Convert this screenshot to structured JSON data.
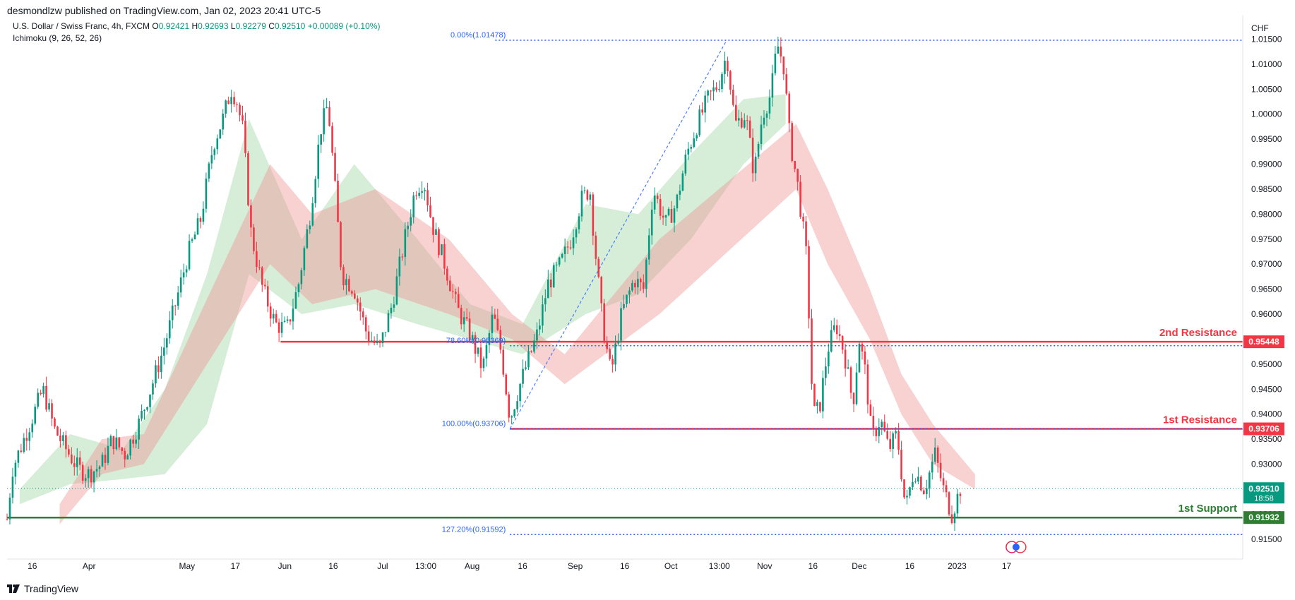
{
  "header": {
    "published": "desmondlzw published on TradingView.com, Jan 02, 2023 20:41 UTC-5"
  },
  "legend": {
    "symbol": "U.S. Dollar / Swiss Franc, 4h, FXCM",
    "o_label": "O",
    "o": "0.92421",
    "h_label": "H",
    "h": "0.92693",
    "l_label": "L",
    "l": "0.92279",
    "c_label": "C",
    "c": "0.92510",
    "change": "+0.00089 (+0.10%)",
    "indicator": "Ichimoku (9, 26, 52, 26)"
  },
  "footer": {
    "logo_text": "TradingView"
  },
  "colors": {
    "up": "#089981",
    "down": "#f23645",
    "cloud_up": "#a5d6a7",
    "cloud_down": "#ef9a9a",
    "resistance": "#f23645",
    "support": "#2e7d32",
    "fib": "#2962ff"
  },
  "chart_data": {
    "type": "line",
    "title": "U.S. Dollar / Swiss Franc, 4h, FXCM",
    "currency": "CHF",
    "ylim": [
      0.9113,
      1.0186
    ],
    "y_ticks": [
      "1.01500",
      "1.01000",
      "1.00500",
      "1.00000",
      "0.99500",
      "0.99000",
      "0.98500",
      "0.98000",
      "0.97500",
      "0.97000",
      "0.96500",
      "0.96000",
      "0.95500",
      "0.95000",
      "0.94500",
      "0.94000",
      "0.93500",
      "0.93000",
      "0.92500",
      "0.92000",
      "0.91500"
    ],
    "x_ticks": [
      {
        "label": "16",
        "x": 0.024
      },
      {
        "label": "Apr",
        "x": 0.078
      },
      {
        "label": "May",
        "x": 0.171
      },
      {
        "label": "17",
        "x": 0.217
      },
      {
        "label": "Jun",
        "x": 0.264
      },
      {
        "label": "16",
        "x": 0.31
      },
      {
        "label": "Jul",
        "x": 0.357
      },
      {
        "label": "13:00",
        "x": 0.398
      },
      {
        "label": "Aug",
        "x": 0.442
      },
      {
        "label": "16",
        "x": 0.49
      },
      {
        "label": "Sep",
        "x": 0.54
      },
      {
        "label": "16",
        "x": 0.587
      },
      {
        "label": "Oct",
        "x": 0.631
      },
      {
        "label": "13:00",
        "x": 0.677
      },
      {
        "label": "Nov",
        "x": 0.72
      },
      {
        "label": "16",
        "x": 0.766
      },
      {
        "label": "Dec",
        "x": 0.81
      },
      {
        "label": "16",
        "x": 0.858
      },
      {
        "label": "2023",
        "x": 0.903
      },
      {
        "label": "17",
        "x": 0.95
      }
    ],
    "price_path": [
      [
        0.0,
        0.919
      ],
      [
        0.005,
        0.929
      ],
      [
        0.016,
        0.935
      ],
      [
        0.027,
        0.941
      ],
      [
        0.034,
        0.945
      ],
      [
        0.045,
        0.937
      ],
      [
        0.056,
        0.933
      ],
      [
        0.068,
        0.929
      ],
      [
        0.078,
        0.928
      ],
      [
        0.09,
        0.93
      ],
      [
        0.1,
        0.935
      ],
      [
        0.112,
        0.932
      ],
      [
        0.125,
        0.938
      ],
      [
        0.138,
        0.946
      ],
      [
        0.15,
        0.954
      ],
      [
        0.16,
        0.962
      ],
      [
        0.172,
        0.972
      ],
      [
        0.184,
        0.979
      ],
      [
        0.196,
        0.994
      ],
      [
        0.205,
        0.999
      ],
      [
        0.213,
        1.005
      ],
      [
        0.218,
        1.003
      ],
      [
        0.224,
        0.997
      ],
      [
        0.232,
        0.976
      ],
      [
        0.243,
        0.965
      ],
      [
        0.255,
        0.958
      ],
      [
        0.266,
        0.957
      ],
      [
        0.277,
        0.966
      ],
      [
        0.288,
        0.98
      ],
      [
        0.298,
        0.997
      ],
      [
        0.305,
        1.002
      ],
      [
        0.311,
        0.987
      ],
      [
        0.318,
        0.968
      ],
      [
        0.33,
        0.965
      ],
      [
        0.342,
        0.956
      ],
      [
        0.354,
        0.953
      ],
      [
        0.366,
        0.962
      ],
      [
        0.378,
        0.975
      ],
      [
        0.388,
        0.985
      ],
      [
        0.396,
        0.987
      ],
      [
        0.404,
        0.978
      ],
      [
        0.416,
        0.97
      ],
      [
        0.428,
        0.961
      ],
      [
        0.44,
        0.956
      ],
      [
        0.452,
        0.949
      ],
      [
        0.462,
        0.96
      ],
      [
        0.47,
        0.952
      ],
      [
        0.478,
        0.939
      ],
      [
        0.486,
        0.945
      ],
      [
        0.494,
        0.95
      ],
      [
        0.504,
        0.956
      ],
      [
        0.514,
        0.966
      ],
      [
        0.526,
        0.97
      ],
      [
        0.536,
        0.975
      ],
      [
        0.546,
        0.983
      ],
      [
        0.554,
        0.985
      ],
      [
        0.558,
        0.975
      ],
      [
        0.566,
        0.958
      ],
      [
        0.574,
        0.948
      ],
      [
        0.584,
        0.96
      ],
      [
        0.596,
        0.967
      ],
      [
        0.605,
        0.965
      ],
      [
        0.614,
        0.985
      ],
      [
        0.626,
        0.978
      ],
      [
        0.636,
        0.982
      ],
      [
        0.646,
        0.992
      ],
      [
        0.656,
        0.998
      ],
      [
        0.666,
        1.003
      ],
      [
        0.676,
        1.006
      ],
      [
        0.684,
        1.012
      ],
      [
        0.692,
        0.998
      ],
      [
        0.702,
        1.0
      ],
      [
        0.71,
        0.988
      ],
      [
        0.718,
        1.0
      ],
      [
        0.726,
        1.004
      ],
      [
        0.732,
        1.014
      ],
      [
        0.738,
        1.01
      ],
      [
        0.744,
        0.995
      ],
      [
        0.752,
        0.985
      ],
      [
        0.76,
        0.971
      ],
      [
        0.766,
        0.94
      ],
      [
        0.772,
        0.941
      ],
      [
        0.78,
        0.953
      ],
      [
        0.788,
        0.958
      ],
      [
        0.796,
        0.952
      ],
      [
        0.804,
        0.942
      ],
      [
        0.81,
        0.955
      ],
      [
        0.816,
        0.948
      ],
      [
        0.822,
        0.935
      ],
      [
        0.83,
        0.939
      ],
      [
        0.838,
        0.933
      ],
      [
        0.846,
        0.936
      ],
      [
        0.854,
        0.921
      ],
      [
        0.862,
        0.929
      ],
      [
        0.872,
        0.925
      ],
      [
        0.882,
        0.932
      ],
      [
        0.89,
        0.925
      ],
      [
        0.898,
        0.92
      ],
      [
        0.906,
        0.9251
      ]
    ],
    "cloud_up_band": [
      [
        0.012,
        0.922,
        0.925
      ],
      [
        0.06,
        0.926,
        0.936
      ],
      [
        0.11,
        0.927,
        0.933
      ],
      [
        0.15,
        0.928,
        0.945
      ],
      [
        0.19,
        0.938,
        0.968
      ],
      [
        0.23,
        0.968,
        0.999
      ],
      [
        0.28,
        0.96,
        0.975
      ],
      [
        0.33,
        0.962,
        0.99
      ],
      [
        0.39,
        0.958,
        0.975
      ],
      [
        0.44,
        0.955,
        0.962
      ],
      [
        0.49,
        0.952,
        0.958
      ],
      [
        0.55,
        0.96,
        0.982
      ],
      [
        0.6,
        0.964,
        0.98
      ],
      [
        0.65,
        0.975,
        0.992
      ],
      [
        0.7,
        0.99,
        1.003
      ],
      [
        0.74,
        0.998,
        1.004
      ]
    ],
    "cloud_down_band": [
      [
        0.05,
        0.918,
        0.922
      ],
      [
        0.09,
        0.928,
        0.935
      ],
      [
        0.13,
        0.93,
        0.936
      ],
      [
        0.25,
        0.97,
        0.99
      ],
      [
        0.29,
        0.962,
        0.98
      ],
      [
        0.35,
        0.965,
        0.985
      ],
      [
        0.42,
        0.96,
        0.975
      ],
      [
        0.48,
        0.955,
        0.96
      ],
      [
        0.53,
        0.946,
        0.952
      ],
      [
        0.62,
        0.96,
        0.975
      ],
      [
        0.75,
        0.985,
        0.998
      ],
      [
        0.78,
        0.97,
        0.985
      ],
      [
        0.82,
        0.955,
        0.965
      ],
      [
        0.85,
        0.94,
        0.948
      ],
      [
        0.88,
        0.93,
        0.938
      ],
      [
        0.92,
        0.925,
        0.928
      ]
    ],
    "fib_levels": [
      {
        "label": "0.00%(1.01478)",
        "value": 1.01478
      },
      {
        "label": "78.60%(0.95369)",
        "value": 0.95369
      },
      {
        "label": "100.00%(0.93706)",
        "value": 0.93706
      },
      {
        "label": "127.20%(0.91592)",
        "value": 0.91592
      }
    ],
    "levels": [
      {
        "name": "2nd Resistance",
        "value": 0.95448,
        "tag": "0.95448",
        "color": "#f23645"
      },
      {
        "name": "1st Resistance",
        "value": 0.93706,
        "tag": "0.93706",
        "color": "#f23645"
      },
      {
        "name": "1st Support",
        "value": 0.91932,
        "tag": "0.91932",
        "color": "#2e7d32"
      }
    ],
    "current_price": {
      "value": 0.9251,
      "tag": "0.92510",
      "countdown": "18:58"
    }
  }
}
